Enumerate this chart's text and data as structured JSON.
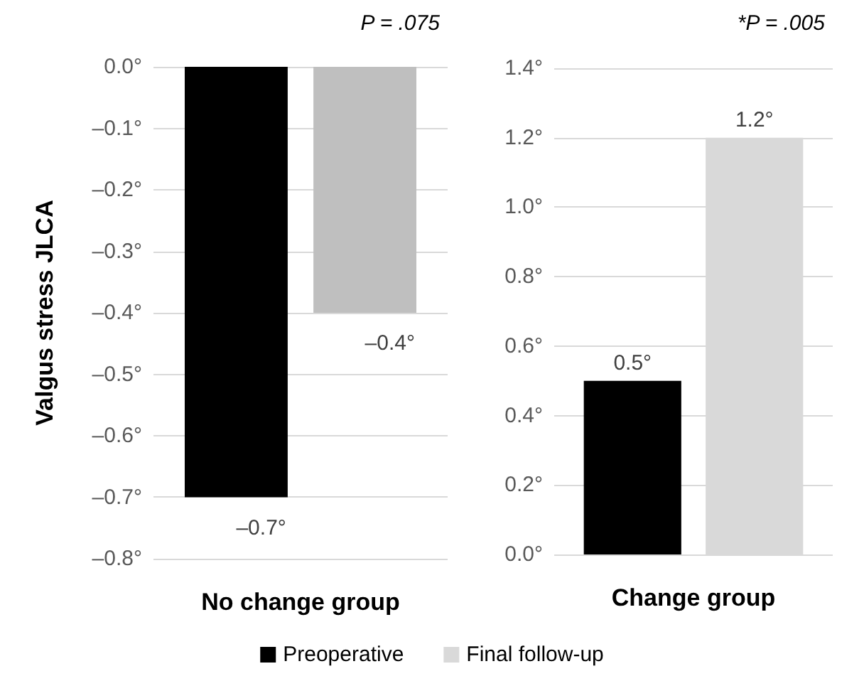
{
  "chart_data": [
    {
      "type": "bar",
      "title": "P = .075",
      "xlabel": "No change group",
      "ylabel": "Valgus stress JLCA",
      "categories": [
        null
      ],
      "series": [
        {
          "color": "#000000",
          "values": [
            -0.7
          ],
          "value_labels": [
            "–0.7°"
          ]
        },
        {
          "color": "#bfbfbf",
          "values": [
            -0.4
          ],
          "value_labels": [
            "–0.4°"
          ]
        }
      ],
      "ylim": [
        -0.8,
        0
      ],
      "yticks": [
        {
          "value": 0,
          "label": "0.0°"
        },
        {
          "value": -0.1,
          "label": "–0.1°"
        },
        {
          "value": -0.2,
          "label": "–0.2°"
        },
        {
          "value": -0.3,
          "label": "–0.3°"
        },
        {
          "value": -0.4,
          "label": "–0.4°"
        },
        {
          "value": -0.5,
          "label": "–0.5°"
        },
        {
          "value": -0.6,
          "label": "–0.6°"
        },
        {
          "value": -0.7,
          "label": "–0.7°"
        },
        {
          "value": -0.8,
          "label": "–0.8°"
        }
      ],
      "grid": "y",
      "legend": false
    },
    {
      "type": "bar",
      "title": "*P = .005",
      "xlabel": "Change group",
      "categories": [
        null
      ],
      "series": [
        {
          "name": "Preoperative",
          "color": "#000000",
          "values": [
            0.5
          ],
          "value_labels": [
            "0.5°"
          ]
        },
        {
          "name": "Final follow-up",
          "color": "#d9d9d9",
          "values": [
            1.2
          ],
          "value_labels": [
            "1.2°"
          ]
        }
      ],
      "ylim": [
        0,
        1.4
      ],
      "yticks": [
        {
          "value": 0,
          "label": "0.0°"
        },
        {
          "value": 0.2,
          "label": "0.2°"
        },
        {
          "value": 0.4,
          "label": "0.4°"
        },
        {
          "value": 0.6,
          "label": "0.6°"
        },
        {
          "value": 0.8,
          "label": "0.8°"
        },
        {
          "value": 1,
          "label": "1.0°"
        },
        {
          "value": 1.2,
          "label": "1.2°"
        },
        {
          "value": 1.4,
          "label": "1.4°"
        }
      ],
      "grid": "y",
      "legend": "bottom"
    }
  ]
}
